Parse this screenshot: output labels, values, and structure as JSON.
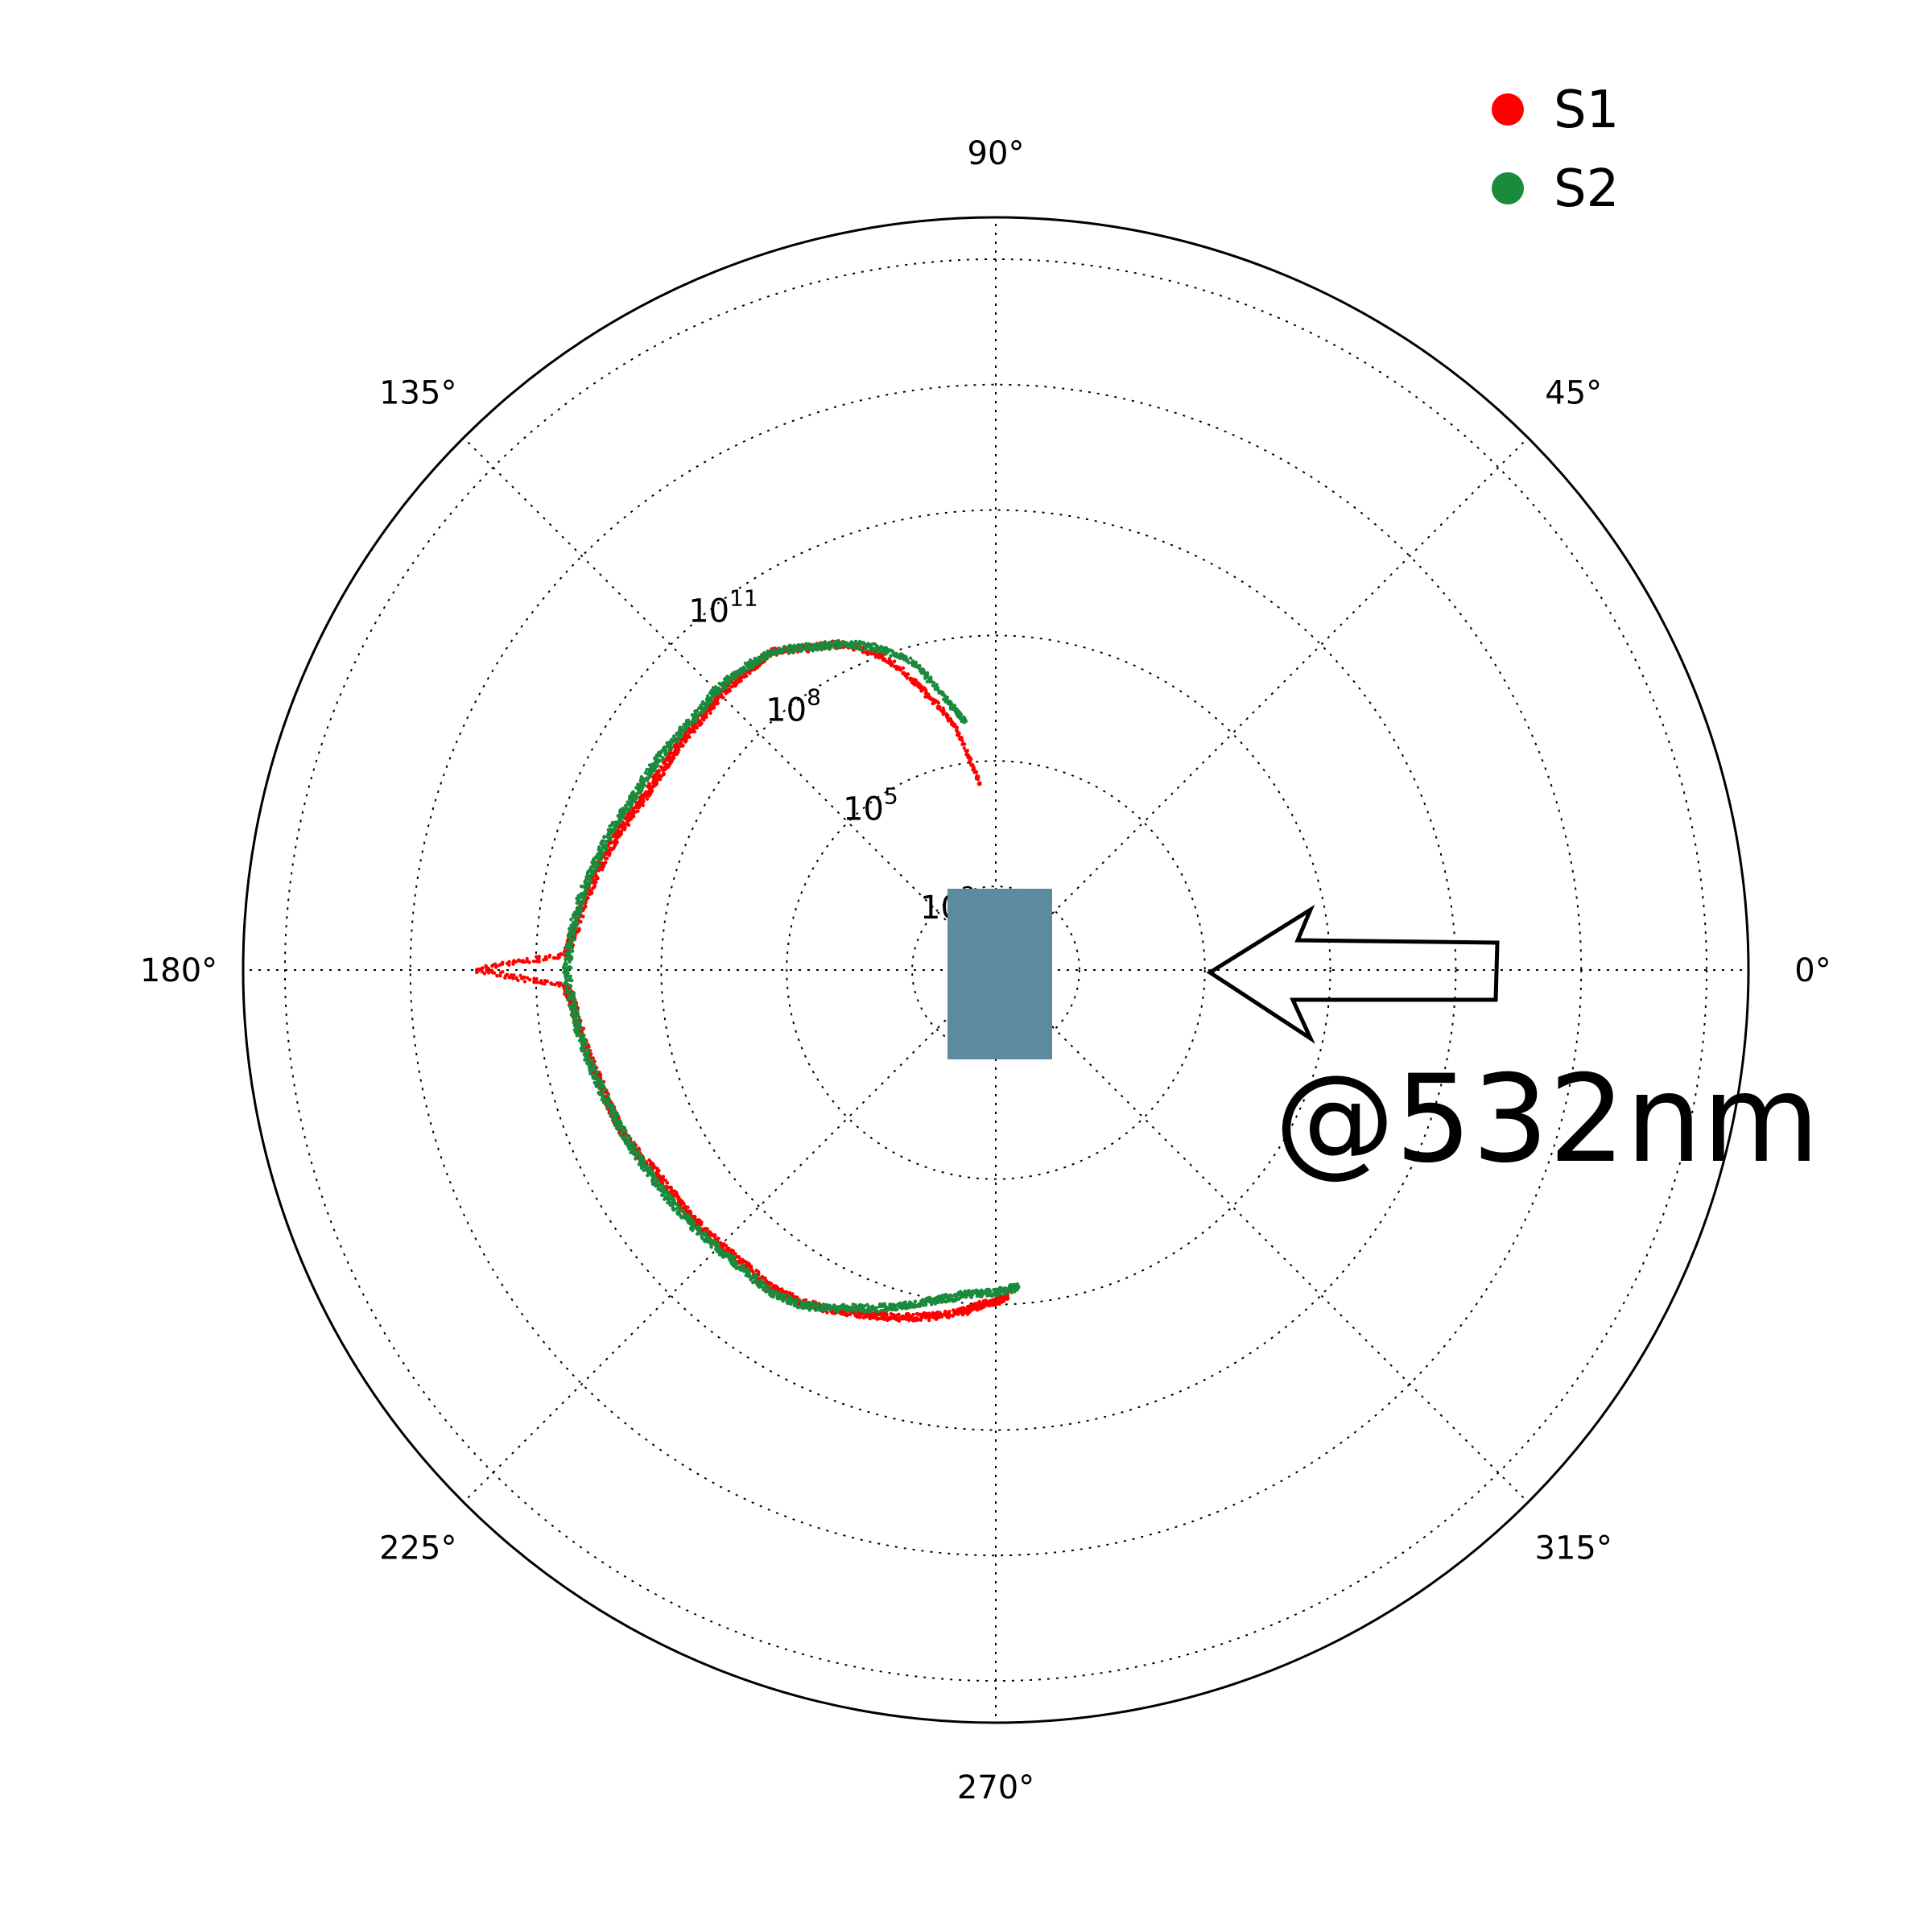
{
  "chart_data": {
    "type": "scatter",
    "projection": "polar",
    "r_scale": "log",
    "theta_unit": "degrees",
    "theta_ticks": [
      {
        "value": 0,
        "label": "0°"
      },
      {
        "value": 45,
        "label": "45°"
      },
      {
        "value": 90,
        "label": "90°"
      },
      {
        "value": 135,
        "label": "135°"
      },
      {
        "value": 180,
        "label": "180°"
      },
      {
        "value": 225,
        "label": "225°"
      },
      {
        "value": 270,
        "label": "270°"
      },
      {
        "value": 315,
        "label": "315°"
      }
    ],
    "r_ticks": [
      {
        "value": 100,
        "base": "10",
        "exp": "2"
      },
      {
        "value": 100000,
        "base": "10",
        "exp": "5"
      },
      {
        "value": 100000000,
        "base": "10",
        "exp": "8"
      },
      {
        "value": 100000000000,
        "base": "10",
        "exp": "11"
      }
    ],
    "rlim": [
      1,
      1e+18
    ],
    "grid": true,
    "legend_position": "top-right",
    "colors": {
      "S1": "#ff0000",
      "S2": "#1a8a3c",
      "particle": "#5e8aa1"
    },
    "series": [
      {
        "name": "S1",
        "color": "#ff0000",
        "theta": [
          95,
          100,
          105,
          110,
          115,
          120,
          125,
          130,
          135,
          140,
          145,
          150,
          155,
          160,
          165,
          170,
          175,
          178,
          180,
          182,
          185,
          190,
          195,
          200,
          205,
          210,
          215,
          220,
          225,
          230,
          235,
          240,
          245,
          250,
          255,
          260,
          265,
          268,
          272
        ],
        "r": [
          30000.0,
          1000000.0,
          10000000.0,
          100000000.0,
          400000000.0,
          800000000.0,
          2000000000.0,
          2000000000.0,
          2000000000.0,
          1800000000.0,
          2000000000.0,
          2000000000.0,
          2500000000.0,
          4000000000.0,
          6000000000.0,
          9000000000.0,
          13000000000.0,
          20000000000.0,
          2500000000000.0,
          20000000000.0,
          13000000000.0,
          10000000000.0,
          7000000000.0,
          6000000000.0,
          5000000000.0,
          3000000000.0,
          2500000000.0,
          2300000000.0,
          2000000000.0,
          1800000000.0,
          2000000000.0,
          1500000000.0,
          1000000000.0,
          600000000.0,
          400000000.0,
          250000000.0,
          150000000.0,
          100000000.0,
          70000000.0
        ]
      },
      {
        "name": "S2",
        "color": "#1a8a3c",
        "theta": [
          97,
          100,
          105,
          110,
          115,
          120,
          125,
          130,
          135,
          140,
          145,
          150,
          155,
          160,
          165,
          170,
          175,
          180,
          185,
          190,
          195,
          200,
          205,
          210,
          215,
          220,
          225,
          230,
          235,
          240,
          245,
          250,
          255,
          260,
          265,
          270,
          274
        ],
        "r": [
          1000000.0,
          3000000.0,
          40000000.0,
          150000000.0,
          400000000.0,
          800000000.0,
          2000000000.0,
          2500000000.0,
          2800000000.0,
          2500000000.0,
          3000000000.0,
          3500000000.0,
          4000000000.0,
          6000000000.0,
          8000000000.0,
          12000000000.0,
          15000000000.0,
          18000000000.0,
          14000000000.0,
          11000000000.0,
          8000000000.0,
          6000000000.0,
          5000000000.0,
          4000000000.0,
          3500000000.0,
          3000000000.0,
          2500000000.0,
          2300000000.0,
          2500000000.0,
          1800000000.0,
          800000000.0,
          400000000.0,
          200000000.0,
          100000000.0,
          60000000.0,
          50000000.0,
          40000000.0
        ]
      }
    ],
    "annotations": {
      "wavelength": "@532nm",
      "arrow_direction": "incident from 0° toward center"
    }
  }
}
